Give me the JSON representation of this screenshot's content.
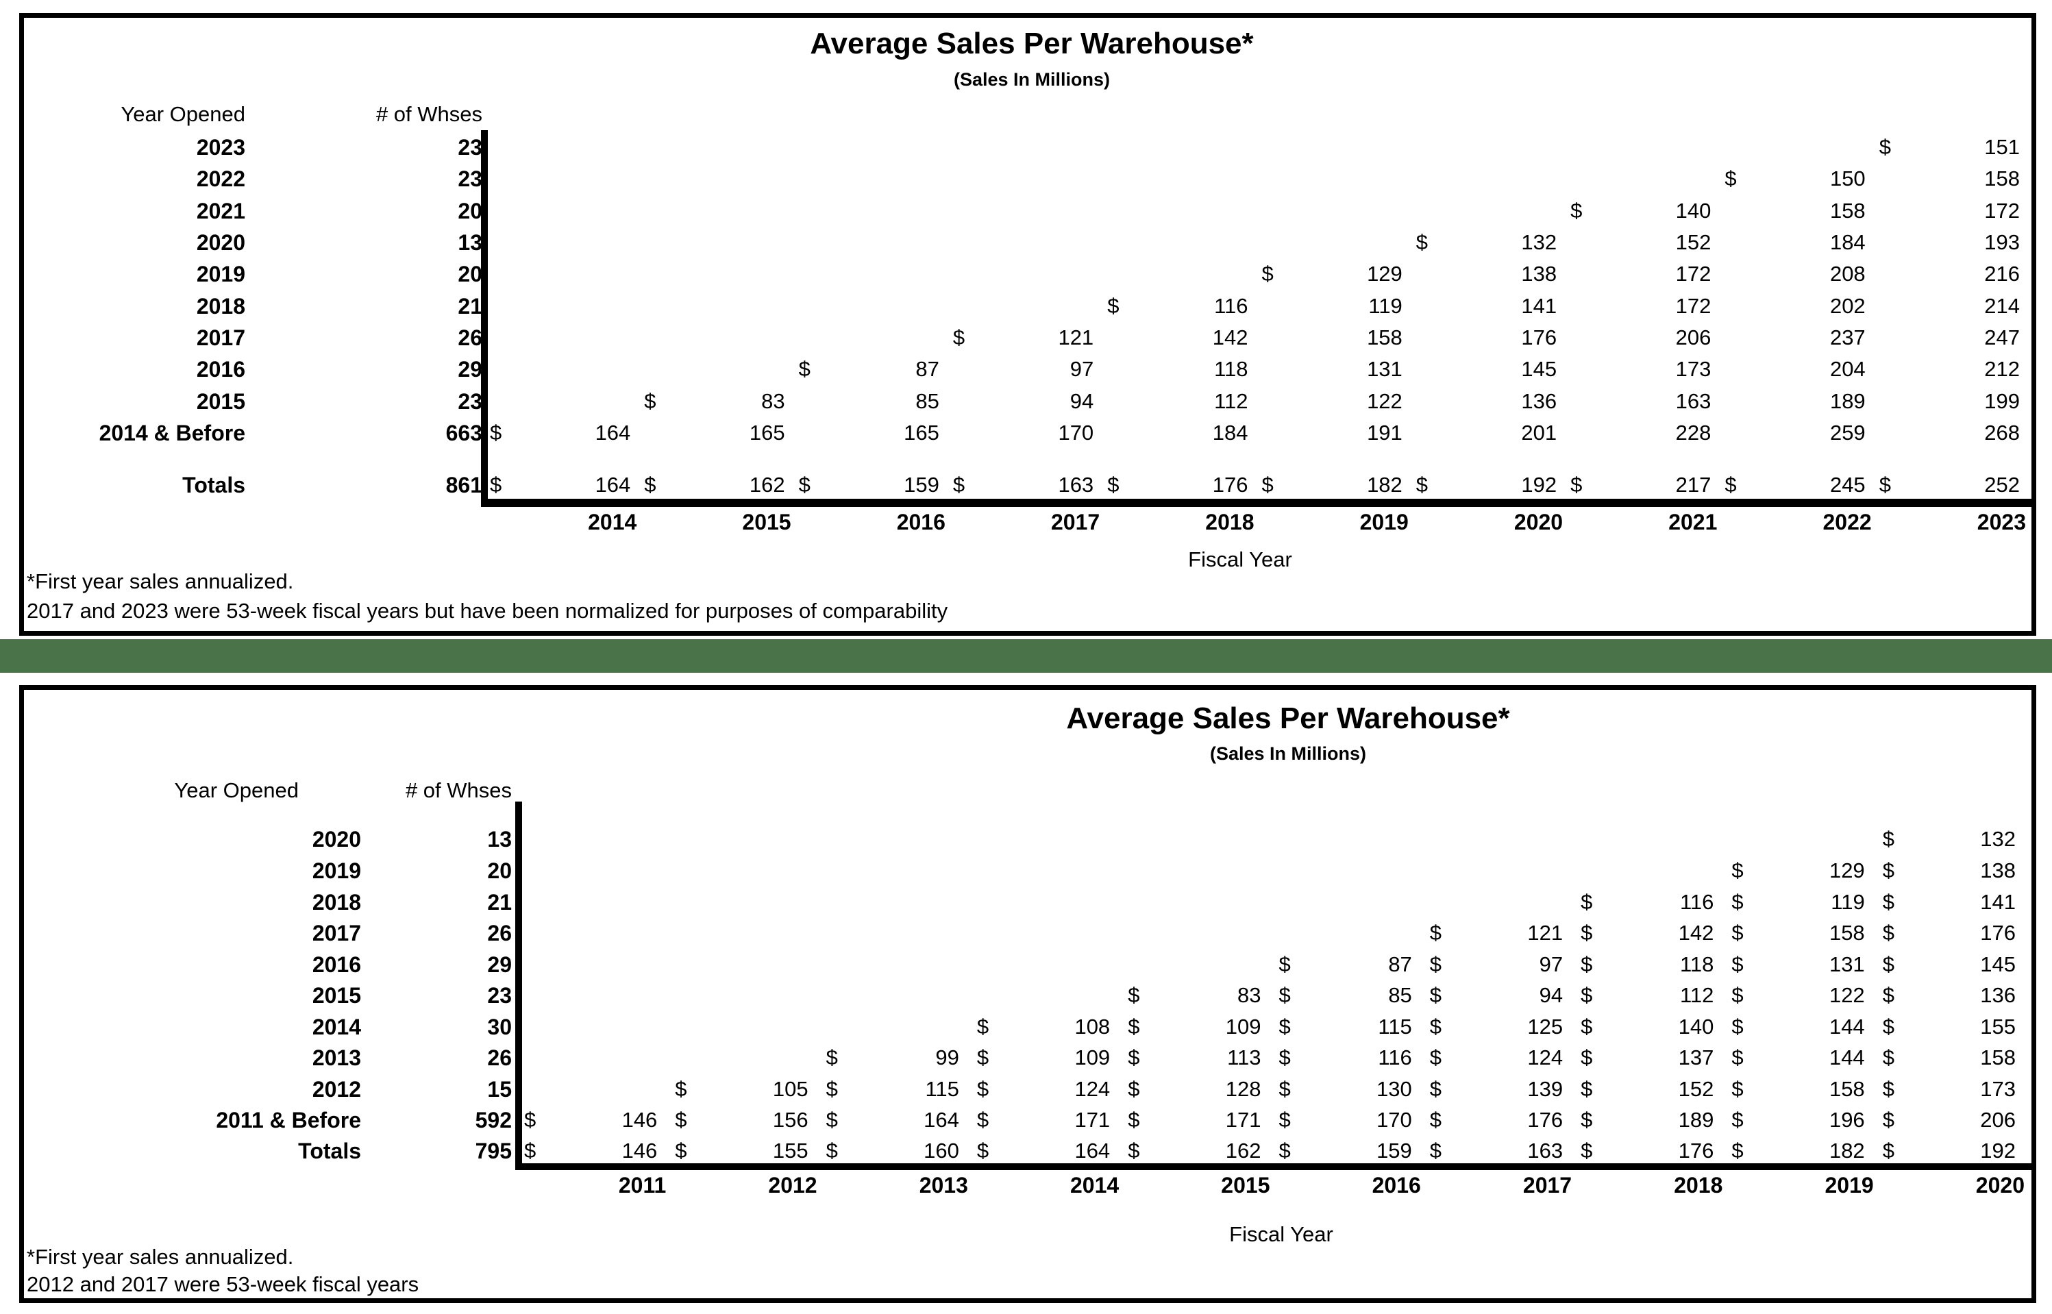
{
  "page": {
    "background": "#ffffff",
    "divider_color": "#4a7349",
    "border_color": "#000000"
  },
  "tables": [
    {
      "title": "Average Sales Per Warehouse*",
      "subtitle": "(Sales In Millions)",
      "year_col_header": "Year Opened",
      "whses_col_header": "# of Whses",
      "x_axis_label": "Fiscal Year",
      "fiscal_years": [
        "2014",
        "2015",
        "2016",
        "2017",
        "2018",
        "2019",
        "2020",
        "2021",
        "2022",
        "2023"
      ],
      "rows": [
        {
          "year": "2023",
          "whses": "23",
          "cells": [
            "",
            "",
            "",
            "",
            "",
            "",
            "",
            "",
            "",
            "$151"
          ]
        },
        {
          "year": "2022",
          "whses": "23",
          "cells": [
            "",
            "",
            "",
            "",
            "",
            "",
            "",
            "",
            "$150",
            "158"
          ]
        },
        {
          "year": "2021",
          "whses": "20",
          "cells": [
            "",
            "",
            "",
            "",
            "",
            "",
            "",
            "$140",
            "158",
            "172"
          ]
        },
        {
          "year": "2020",
          "whses": "13",
          "cells": [
            "",
            "",
            "",
            "",
            "",
            "",
            "$132",
            "152",
            "184",
            "193"
          ]
        },
        {
          "year": "2019",
          "whses": "20",
          "cells": [
            "",
            "",
            "",
            "",
            "",
            "$129",
            "138",
            "172",
            "208",
            "216"
          ]
        },
        {
          "year": "2018",
          "whses": "21",
          "cells": [
            "",
            "",
            "",
            "",
            "$116",
            "119",
            "141",
            "172",
            "202",
            "214"
          ]
        },
        {
          "year": "2017",
          "whses": "26",
          "cells": [
            "",
            "",
            "",
            "$121",
            "142",
            "158",
            "176",
            "206",
            "237",
            "247"
          ]
        },
        {
          "year": "2016",
          "whses": "29",
          "cells": [
            "",
            "",
            "$87",
            "97",
            "118",
            "131",
            "145",
            "173",
            "204",
            "212"
          ]
        },
        {
          "year": "2015",
          "whses": "23",
          "cells": [
            "",
            "$83",
            "85",
            "94",
            "112",
            "122",
            "136",
            "163",
            "189",
            "199"
          ]
        },
        {
          "year": "2014 & Before",
          "whses": "663",
          "cells": [
            "$164",
            "165",
            "165",
            "170",
            "184",
            "191",
            "201",
            "228",
            "259",
            "268"
          ]
        }
      ],
      "totals_row": {
        "year": "Totals",
        "whses": "861",
        "cells": [
          "$164",
          "$162",
          "$159",
          "$163",
          "$176",
          "$182",
          "$192",
          "$217",
          "$245",
          "$252"
        ]
      },
      "footnotes": [
        "*First year sales annualized.",
        "2017 and 2023 were 53-week fiscal years but have been normalized for purposes of comparability"
      ]
    },
    {
      "title": "Average Sales Per Warehouse*",
      "subtitle": "(Sales In Millions)",
      "year_col_header": "Year Opened",
      "whses_col_header": "# of Whses",
      "x_axis_label": "Fiscal Year",
      "fiscal_years": [
        "2011",
        "2012",
        "2013",
        "2014",
        "2015",
        "2016",
        "2017",
        "2018",
        "2019",
        "2020"
      ],
      "rows": [
        {
          "year": "2020",
          "whses": "13",
          "cells": [
            "",
            "",
            "",
            "",
            "",
            "",
            "",
            "",
            "",
            "$132"
          ]
        },
        {
          "year": "2019",
          "whses": "20",
          "cells": [
            "",
            "",
            "",
            "",
            "",
            "",
            "",
            "",
            "$129",
            "$138"
          ]
        },
        {
          "year": "2018",
          "whses": "21",
          "cells": [
            "",
            "",
            "",
            "",
            "",
            "",
            "",
            "$116",
            "$119",
            "$141"
          ]
        },
        {
          "year": "2017",
          "whses": "26",
          "cells": [
            "",
            "",
            "",
            "",
            "",
            "",
            "$121",
            "$142",
            "$158",
            "$176"
          ]
        },
        {
          "year": "2016",
          "whses": "29",
          "cells": [
            "",
            "",
            "",
            "",
            "",
            "$87",
            "$97",
            "$118",
            "$131",
            "$145"
          ]
        },
        {
          "year": "2015",
          "whses": "23",
          "cells": [
            "",
            "",
            "",
            "",
            "$83",
            "$85",
            "$94",
            "$112",
            "$122",
            "$136"
          ]
        },
        {
          "year": "2014",
          "whses": "30",
          "cells": [
            "",
            "",
            "",
            "$108",
            "$109",
            "$115",
            "$125",
            "$140",
            "$144",
            "$155"
          ]
        },
        {
          "year": "2013",
          "whses": "26",
          "cells": [
            "",
            "",
            "$99",
            "$109",
            "$113",
            "$116",
            "$124",
            "$137",
            "$144",
            "$158"
          ]
        },
        {
          "year": "2012",
          "whses": "15",
          "cells": [
            "",
            "$105",
            "$115",
            "$124",
            "$128",
            "$130",
            "$139",
            "$152",
            "$158",
            "$173"
          ]
        },
        {
          "year": "2011 & Before",
          "whses": "592",
          "cells": [
            "$146",
            "$156",
            "$164",
            "$171",
            "$171",
            "$170",
            "$176",
            "$189",
            "$196",
            "$206"
          ]
        }
      ],
      "totals_row": {
        "year": "Totals",
        "whses": "795",
        "cells": [
          "$146",
          "$155",
          "$160",
          "$164",
          "$162",
          "$159",
          "$163",
          "$176",
          "$182",
          "$192"
        ]
      },
      "footnotes": [
        "*First year sales annualized.",
        "2012 and 2017 were 53-week fiscal years"
      ]
    }
  ]
}
